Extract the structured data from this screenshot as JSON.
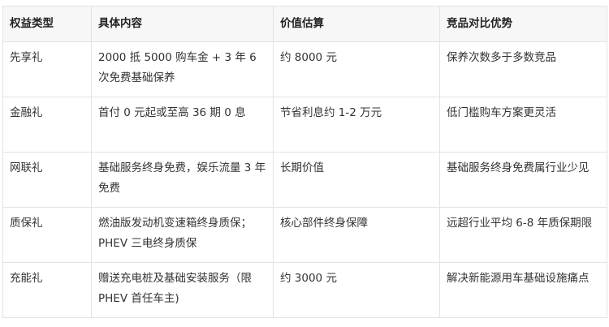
{
  "table": {
    "headers": [
      "权益类型",
      "具体内容",
      "价值估算",
      "竞品对比优势"
    ],
    "rows": [
      [
        "先享礼",
        "2000 抵 5000 购车金 + 3 年 6 次免费基础保养",
        "约 8000 元",
        "保养次数多于多数竞品"
      ],
      [
        "金融礼",
        "首付 0 元起或至高 36 期 0 息",
        "节省利息约 1-2 万元",
        "低门槛购车方案更灵活"
      ],
      [
        "网联礼",
        "基础服务终身免费，娱乐流量 3 年免费",
        "长期价值",
        "基础服务终身免费属行业少见"
      ],
      [
        "质保礼",
        "燃油版发动机变速箱终身质保；PHEV 三电终身质保",
        "核心部件终身保障",
        "远超行业平均 6-8 年质保期限"
      ],
      [
        "充能礼",
        "赠送充电桩及基础安装服务（限 PHEV 首任车主)",
        "约 3000 元",
        "解决新能源用车基础设施痛点"
      ]
    ]
  }
}
